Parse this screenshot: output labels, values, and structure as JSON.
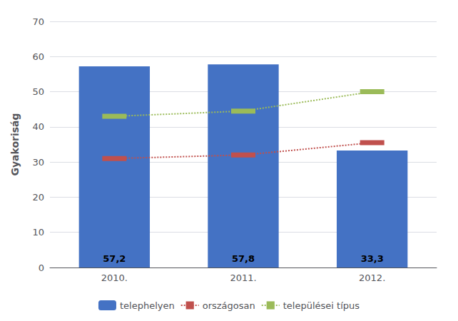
{
  "chart_data": {
    "type": "bar",
    "categories": [
      "2010.",
      "2011.",
      "2012."
    ],
    "series": [
      {
        "name": "telephelyen",
        "type": "bar",
        "color": "#4472C4",
        "values": [
          57.2,
          57.8,
          33.3
        ],
        "value_labels": [
          "57,2",
          "57,8",
          "33,3"
        ],
        "data_labels": true
      },
      {
        "name": "országosan",
        "type": "line",
        "color": "#C0504D",
        "values": [
          31.0,
          32.0,
          35.5
        ],
        "line_style": "dotted",
        "marker": "square"
      },
      {
        "name": "települései típus",
        "type": "line",
        "color": "#9BBB59",
        "values": [
          43.0,
          44.5,
          50.0
        ],
        "line_style": "dotted",
        "marker": "square"
      }
    ],
    "ylabel": "Gyakoriság",
    "ylim": [
      0,
      70
    ],
    "yticks": [
      0,
      10,
      20,
      30,
      40,
      50,
      60,
      70
    ],
    "grid": true,
    "legend": "bottom"
  }
}
